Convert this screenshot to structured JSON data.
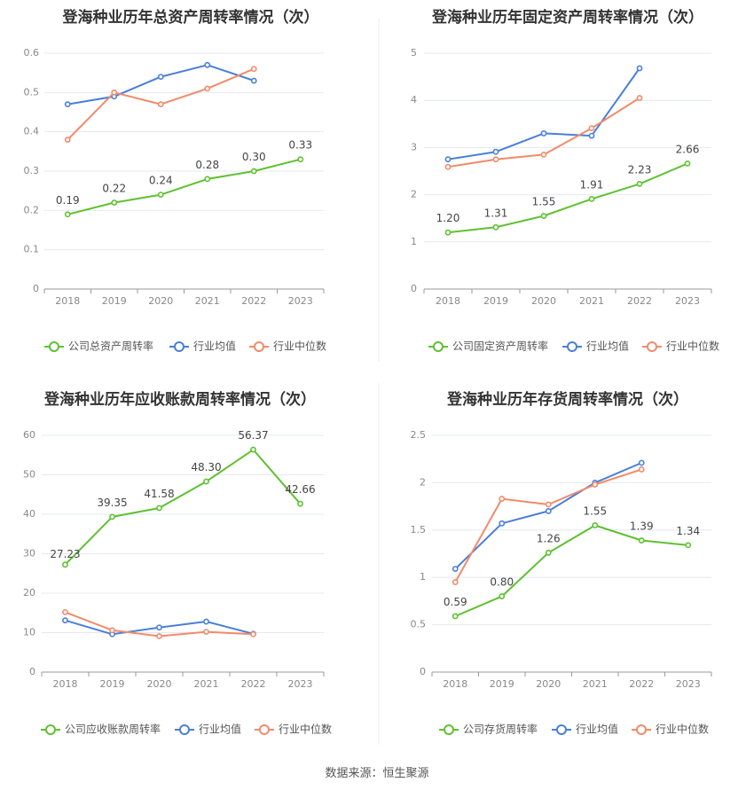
{
  "source": "数据来源：恒生聚源",
  "chart_data": [
    {
      "type": "line",
      "title": "登海种业历年总资产周转率情况（次）",
      "categories": [
        "2018",
        "2019",
        "2020",
        "2021",
        "2022",
        "2023"
      ],
      "ylim": [
        0,
        0.6
      ],
      "yticks": [
        "0",
        "0.1",
        "0.2",
        "0.3",
        "0.4",
        "0.5",
        "0.6"
      ],
      "grid": true,
      "legend_position": "bottom",
      "series": [
        {
          "name": "公司总资产周转率",
          "color": "#5ec130",
          "values": [
            0.19,
            0.22,
            0.24,
            0.28,
            0.3,
            0.33
          ],
          "labels": [
            "0.19",
            "0.22",
            "0.24",
            "0.28",
            "0.30",
            "0.33"
          ]
        },
        {
          "name": "行业均值",
          "color": "#4a7fd8",
          "values": [
            0.47,
            0.49,
            0.54,
            0.57,
            0.53,
            null
          ]
        },
        {
          "name": "行业中位数",
          "color": "#f28a6a",
          "values": [
            0.38,
            0.5,
            0.47,
            0.51,
            0.56,
            null
          ]
        }
      ]
    },
    {
      "type": "line",
      "title": "登海种业历年固定资产周转率情况（次）",
      "categories": [
        "2018",
        "2019",
        "2020",
        "2021",
        "2022",
        "2023"
      ],
      "ylim": [
        0,
        5
      ],
      "yticks": [
        "0",
        "1",
        "2",
        "3",
        "4",
        "5"
      ],
      "grid": true,
      "legend_position": "bottom",
      "series": [
        {
          "name": "公司固定资产周转率",
          "color": "#5ec130",
          "values": [
            1.2,
            1.31,
            1.55,
            1.91,
            2.23,
            2.66
          ],
          "labels": [
            "1.20",
            "1.31",
            "1.55",
            "1.91",
            "2.23",
            "2.66"
          ]
        },
        {
          "name": "行业均值",
          "color": "#4a7fd8",
          "values": [
            2.75,
            2.91,
            3.3,
            3.25,
            4.68,
            null
          ]
        },
        {
          "name": "行业中位数",
          "color": "#f28a6a",
          "values": [
            2.59,
            2.75,
            2.85,
            3.41,
            4.05,
            null
          ]
        }
      ]
    },
    {
      "type": "line",
      "title": "登海种业历年应收账款周转率情况（次）",
      "categories": [
        "2018",
        "2019",
        "2020",
        "2021",
        "2022",
        "2023"
      ],
      "ylim": [
        0,
        60
      ],
      "yticks": [
        "0",
        "10",
        "20",
        "30",
        "40",
        "50",
        "60"
      ],
      "grid": true,
      "legend_position": "bottom",
      "series": [
        {
          "name": "公司应收账款周转率",
          "color": "#5ec130",
          "values": [
            27.23,
            39.35,
            41.58,
            48.3,
            56.37,
            42.66
          ],
          "labels": [
            "27.23",
            "39.35",
            "41.58",
            "48.30",
            "56.37",
            "42.66"
          ]
        },
        {
          "name": "行业均值",
          "color": "#4a7fd8",
          "values": [
            13.1,
            9.6,
            11.3,
            12.8,
            9.7,
            null
          ]
        },
        {
          "name": "行业中位数",
          "color": "#f28a6a",
          "values": [
            15.2,
            10.6,
            9.1,
            10.2,
            9.6,
            null
          ]
        }
      ]
    },
    {
      "type": "line",
      "title": "登海种业历年存货周转率情况（次）",
      "categories": [
        "2018",
        "2019",
        "2020",
        "2021",
        "2022",
        "2023"
      ],
      "ylim": [
        0,
        2.5
      ],
      "yticks": [
        "0",
        "0.5",
        "1",
        "1.5",
        "2",
        "2.5"
      ],
      "grid": true,
      "legend_position": "bottom",
      "series": [
        {
          "name": "公司存货周转率",
          "color": "#5ec130",
          "values": [
            0.59,
            0.8,
            1.26,
            1.55,
            1.39,
            1.34
          ],
          "labels": [
            "0.59",
            "0.80",
            "1.26",
            "1.55",
            "1.39",
            "1.34"
          ]
        },
        {
          "name": "行业均值",
          "color": "#4a7fd8",
          "values": [
            1.09,
            1.57,
            1.7,
            2.0,
            2.21,
            null
          ]
        },
        {
          "name": "行业中位数",
          "color": "#f28a6a",
          "values": [
            0.95,
            1.83,
            1.77,
            1.98,
            2.14,
            null
          ]
        }
      ]
    }
  ]
}
